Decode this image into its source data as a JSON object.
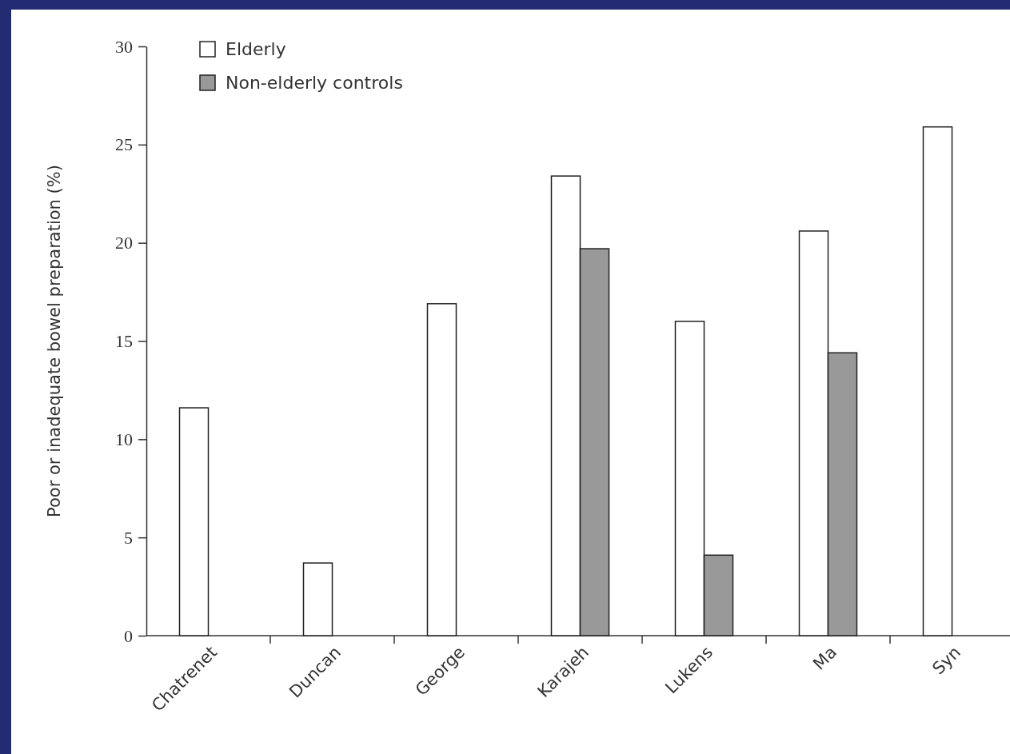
{
  "chart_data": {
    "type": "bar",
    "ylabel": "Poor or inadequate bowel preparation (%)",
    "categories": [
      "Chatrenet",
      "Duncan",
      "George",
      "Karajeh",
      "Lukens",
      "Ma",
      "Syn"
    ],
    "series": [
      {
        "name": "Elderly",
        "color": "#ffffff",
        "values": [
          11.6,
          3.7,
          16.9,
          23.4,
          16.0,
          20.6,
          25.9
        ]
      },
      {
        "name": "Non-elderly controls",
        "color": "#999999",
        "values": [
          null,
          null,
          null,
          19.7,
          4.1,
          14.4,
          null
        ]
      }
    ],
    "ylim": [
      0,
      30
    ],
    "yticks": [
      0,
      5,
      10,
      15,
      20,
      25,
      30
    ],
    "grid": false,
    "legend": "top left"
  }
}
